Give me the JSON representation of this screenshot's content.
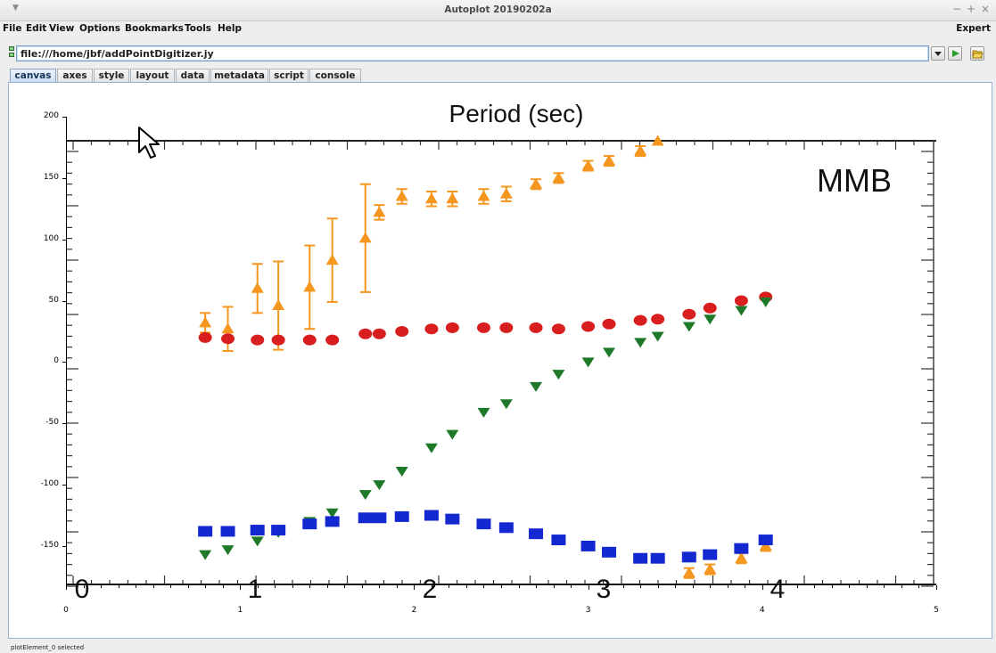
{
  "window": {
    "title": "Autoplot 20190202a",
    "controls": {
      "minimize": "−",
      "maximize": "+",
      "close": "×"
    }
  },
  "menu": {
    "items": [
      "File",
      "Edit",
      "View",
      "Options",
      "Bookmarks",
      "Tools",
      "Help"
    ],
    "expert_label": "Expert"
  },
  "address": {
    "value": "file:///home/jbf/addPointDigitizer.jy"
  },
  "toolbar": {
    "icons": [
      "chevron-down-icon",
      "play-icon",
      "folder-open-icon"
    ]
  },
  "tabs": [
    "canvas",
    "axes",
    "style",
    "layout",
    "data",
    "metadata",
    "script",
    "console"
  ],
  "active_tab": "canvas",
  "plot": {
    "image_labels": {
      "title": "Period (sec)",
      "watermark": "MMB",
      "bottom_ticks": [
        "0",
        "1",
        "2",
        "3",
        "4"
      ]
    },
    "colors": {
      "orange": "#f5961e",
      "red": "#d81e1e",
      "green": "#1e7a28",
      "blue": "#1428d2"
    }
  },
  "chart_data": {
    "type": "scatter",
    "title": "",
    "xlabel": "",
    "ylabel": "",
    "xlim": [
      0,
      5
    ],
    "ylim": [
      -182,
      200
    ],
    "x_ticks": [
      "0",
      "1",
      "2",
      "3",
      "4",
      "5"
    ],
    "y_ticks": [
      "200",
      "150",
      "100",
      "50",
      "0",
      "-50",
      "-100",
      "-150"
    ],
    "series": [
      {
        "color": "#f5961e",
        "marker": "triangle-up",
        "points": [
          [
            0.8,
            32,
            8
          ],
          [
            0.93,
            27,
            18
          ],
          [
            1.1,
            60,
            20
          ],
          [
            1.22,
            46,
            36
          ],
          [
            1.4,
            61,
            34
          ],
          [
            1.53,
            83,
            34
          ],
          [
            1.72,
            101,
            44
          ],
          [
            1.8,
            122,
            6
          ],
          [
            1.93,
            135,
            6
          ],
          [
            2.1,
            133,
            6
          ],
          [
            2.22,
            133,
            6
          ],
          [
            2.4,
            135,
            6
          ],
          [
            2.53,
            137,
            6
          ],
          [
            2.7,
            145,
            4
          ],
          [
            2.83,
            150,
            4
          ],
          [
            3.0,
            160,
            4
          ],
          [
            3.12,
            164,
            4
          ],
          [
            3.3,
            172,
            4
          ],
          [
            3.4,
            180,
            2
          ],
          [
            3.58,
            -172,
            4
          ],
          [
            3.7,
            -169,
            4
          ],
          [
            3.88,
            -160,
            4
          ],
          [
            4.02,
            -150,
            4
          ]
        ]
      },
      {
        "color": "#d81e1e",
        "marker": "circle",
        "points": [
          [
            0.8,
            20
          ],
          [
            0.93,
            19
          ],
          [
            1.1,
            18
          ],
          [
            1.22,
            18
          ],
          [
            1.4,
            18
          ],
          [
            1.53,
            18
          ],
          [
            1.72,
            23
          ],
          [
            1.8,
            23
          ],
          [
            1.93,
            25
          ],
          [
            2.1,
            27
          ],
          [
            2.22,
            28
          ],
          [
            2.4,
            28
          ],
          [
            2.53,
            28
          ],
          [
            2.7,
            28
          ],
          [
            2.83,
            27
          ],
          [
            3.0,
            29
          ],
          [
            3.12,
            31
          ],
          [
            3.3,
            34
          ],
          [
            3.4,
            35
          ],
          [
            3.58,
            39
          ],
          [
            3.7,
            44
          ],
          [
            3.88,
            50
          ],
          [
            4.02,
            53
          ]
        ]
      },
      {
        "color": "#1e7a28",
        "marker": "triangle-down",
        "points": [
          [
            0.8,
            -157
          ],
          [
            0.93,
            -153
          ],
          [
            1.1,
            -146
          ],
          [
            1.22,
            -139
          ],
          [
            1.4,
            -130
          ],
          [
            1.53,
            -123
          ],
          [
            1.72,
            -108
          ],
          [
            1.8,
            -100
          ],
          [
            1.93,
            -89
          ],
          [
            2.1,
            -70
          ],
          [
            2.22,
            -59
          ],
          [
            2.4,
            -41
          ],
          [
            2.53,
            -34
          ],
          [
            2.7,
            -20
          ],
          [
            2.83,
            -10
          ],
          [
            3.0,
            0
          ],
          [
            3.12,
            8
          ],
          [
            3.3,
            16
          ],
          [
            3.4,
            21
          ],
          [
            3.58,
            29
          ],
          [
            3.7,
            35
          ],
          [
            3.88,
            42
          ],
          [
            4.02,
            49
          ]
        ]
      },
      {
        "color": "#1428d2",
        "marker": "square",
        "points": [
          [
            0.8,
            -138
          ],
          [
            0.93,
            -138
          ],
          [
            1.1,
            -137
          ],
          [
            1.22,
            -137
          ],
          [
            1.4,
            -132
          ],
          [
            1.53,
            -130
          ],
          [
            1.72,
            -127
          ],
          [
            1.8,
            -127
          ],
          [
            1.93,
            -126
          ],
          [
            2.1,
            -125
          ],
          [
            2.22,
            -128
          ],
          [
            2.4,
            -132
          ],
          [
            2.53,
            -135
          ],
          [
            2.7,
            -140
          ],
          [
            2.83,
            -145
          ],
          [
            3.0,
            -150
          ],
          [
            3.12,
            -155
          ],
          [
            3.3,
            -160
          ],
          [
            3.4,
            -160
          ],
          [
            3.58,
            -159
          ],
          [
            3.7,
            -157
          ],
          [
            3.88,
            -152
          ],
          [
            4.02,
            -145
          ]
        ]
      }
    ]
  },
  "status": {
    "text": "plotElement_0 selected"
  }
}
